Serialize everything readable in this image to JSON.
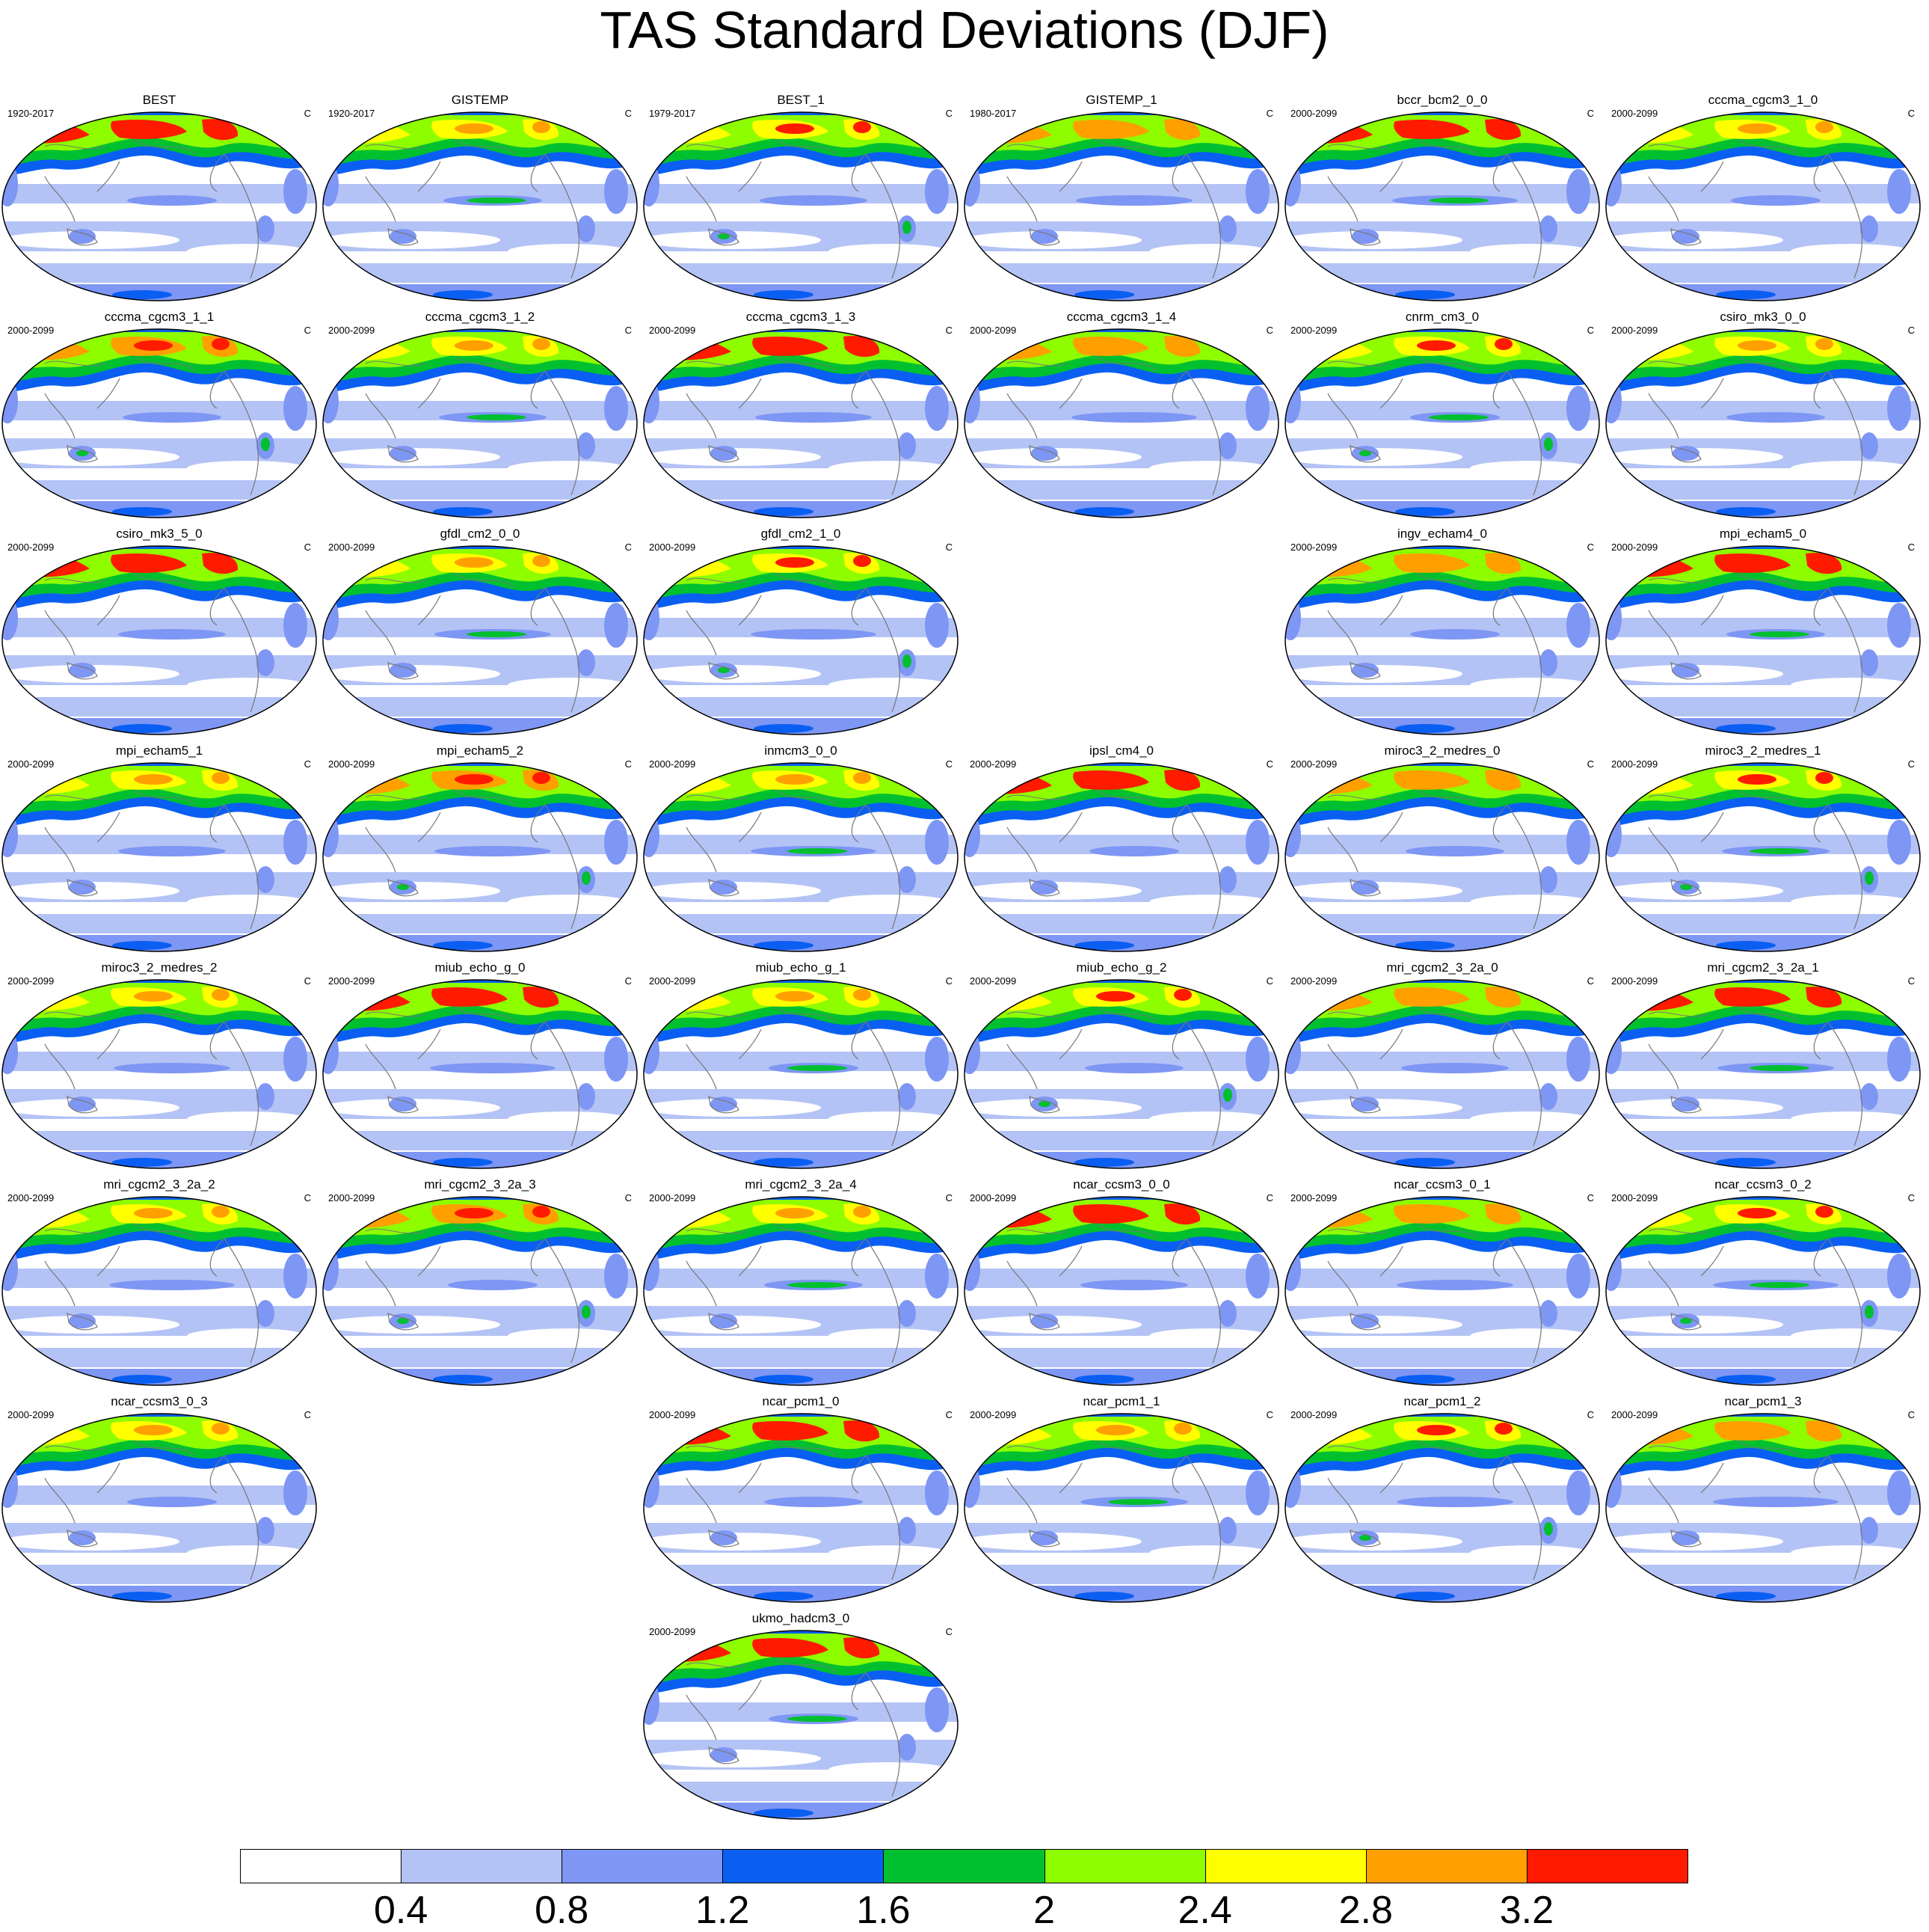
{
  "title": "TAS Standard Deviations (DJF)",
  "unit": "C",
  "colorbar": {
    "colors": [
      "#ffffff",
      "#b4c3f5",
      "#7e96f4",
      "#0a5ff2",
      "#00c030",
      "#8dfd00",
      "#ffff00",
      "#ffa000",
      "#ff1a00"
    ],
    "labels": [
      "0.4",
      "0.8",
      "1.2",
      "1.6",
      "2",
      "2.4",
      "2.8",
      "3.2"
    ]
  },
  "panels": [
    {
      "title": "BEST",
      "period": "1920-2017",
      "row": 0,
      "col": 0
    },
    {
      "title": "GISTEMP",
      "period": "1920-2017",
      "row": 0,
      "col": 1
    },
    {
      "title": "BEST_1",
      "period": "1979-2017",
      "row": 0,
      "col": 2
    },
    {
      "title": "GISTEMP_1",
      "period": "1980-2017",
      "row": 0,
      "col": 3
    },
    {
      "title": "bccr_bcm2_0_0",
      "period": "2000-2099",
      "row": 0,
      "col": 4
    },
    {
      "title": "cccma_cgcm3_1_0",
      "period": "2000-2099",
      "row": 0,
      "col": 5
    },
    {
      "title": "cccma_cgcm3_1_1",
      "period": "2000-2099",
      "row": 1,
      "col": 0
    },
    {
      "title": "cccma_cgcm3_1_2",
      "period": "2000-2099",
      "row": 1,
      "col": 1
    },
    {
      "title": "cccma_cgcm3_1_3",
      "period": "2000-2099",
      "row": 1,
      "col": 2
    },
    {
      "title": "cccma_cgcm3_1_4",
      "period": "2000-2099",
      "row": 1,
      "col": 3
    },
    {
      "title": "cnrm_cm3_0",
      "period": "2000-2099",
      "row": 1,
      "col": 4
    },
    {
      "title": "csiro_mk3_0_0",
      "period": "2000-2099",
      "row": 1,
      "col": 5
    },
    {
      "title": "csiro_mk3_5_0",
      "period": "2000-2099",
      "row": 2,
      "col": 0
    },
    {
      "title": "gfdl_cm2_0_0",
      "period": "2000-2099",
      "row": 2,
      "col": 1
    },
    {
      "title": "gfdl_cm2_1_0",
      "period": "2000-2099",
      "row": 2,
      "col": 2
    },
    {
      "title": "ingv_echam4_0",
      "period": "2000-2099",
      "row": 2,
      "col": 4
    },
    {
      "title": "mpi_echam5_0",
      "period": "2000-2099",
      "row": 2,
      "col": 5
    },
    {
      "title": "mpi_echam5_1",
      "period": "2000-2099",
      "row": 3,
      "col": 0
    },
    {
      "title": "mpi_echam5_2",
      "period": "2000-2099",
      "row": 3,
      "col": 1
    },
    {
      "title": "inmcm3_0_0",
      "period": "2000-2099",
      "row": 3,
      "col": 2
    },
    {
      "title": "ipsl_cm4_0",
      "period": "2000-2099",
      "row": 3,
      "col": 3
    },
    {
      "title": "miroc3_2_medres_0",
      "period": "2000-2099",
      "row": 3,
      "col": 4
    },
    {
      "title": "miroc3_2_medres_1",
      "period": "2000-2099",
      "row": 3,
      "col": 5
    },
    {
      "title": "miroc3_2_medres_2",
      "period": "2000-2099",
      "row": 4,
      "col": 0
    },
    {
      "title": "miub_echo_g_0",
      "period": "2000-2099",
      "row": 4,
      "col": 1
    },
    {
      "title": "miub_echo_g_1",
      "period": "2000-2099",
      "row": 4,
      "col": 2
    },
    {
      "title": "miub_echo_g_2",
      "period": "2000-2099",
      "row": 4,
      "col": 3
    },
    {
      "title": "mri_cgcm2_3_2a_0",
      "period": "2000-2099",
      "row": 4,
      "col": 4
    },
    {
      "title": "mri_cgcm2_3_2a_1",
      "period": "2000-2099",
      "row": 4,
      "col": 5
    },
    {
      "title": "mri_cgcm2_3_2a_2",
      "period": "2000-2099",
      "row": 5,
      "col": 0
    },
    {
      "title": "mri_cgcm2_3_2a_3",
      "period": "2000-2099",
      "row": 5,
      "col": 1
    },
    {
      "title": "mri_cgcm2_3_2a_4",
      "period": "2000-2099",
      "row": 5,
      "col": 2
    },
    {
      "title": "ncar_ccsm3_0_0",
      "period": "2000-2099",
      "row": 5,
      "col": 3
    },
    {
      "title": "ncar_ccsm3_0_1",
      "period": "2000-2099",
      "row": 5,
      "col": 4
    },
    {
      "title": "ncar_ccsm3_0_2",
      "period": "2000-2099",
      "row": 5,
      "col": 5
    },
    {
      "title": "ncar_ccsm3_0_3",
      "period": "2000-2099",
      "row": 6,
      "col": 0
    },
    {
      "title": "ncar_pcm1_0",
      "period": "2000-2099",
      "row": 6,
      "col": 2
    },
    {
      "title": "ncar_pcm1_1",
      "period": "2000-2099",
      "row": 6,
      "col": 3
    },
    {
      "title": "ncar_pcm1_2",
      "period": "2000-2099",
      "row": 6,
      "col": 4
    },
    {
      "title": "ncar_pcm1_3",
      "period": "2000-2099",
      "row": 6,
      "col": 5
    },
    {
      "title": "ukmo_hadcm3_0",
      "period": "2000-2099",
      "row": 7,
      "col": 2
    }
  ]
}
